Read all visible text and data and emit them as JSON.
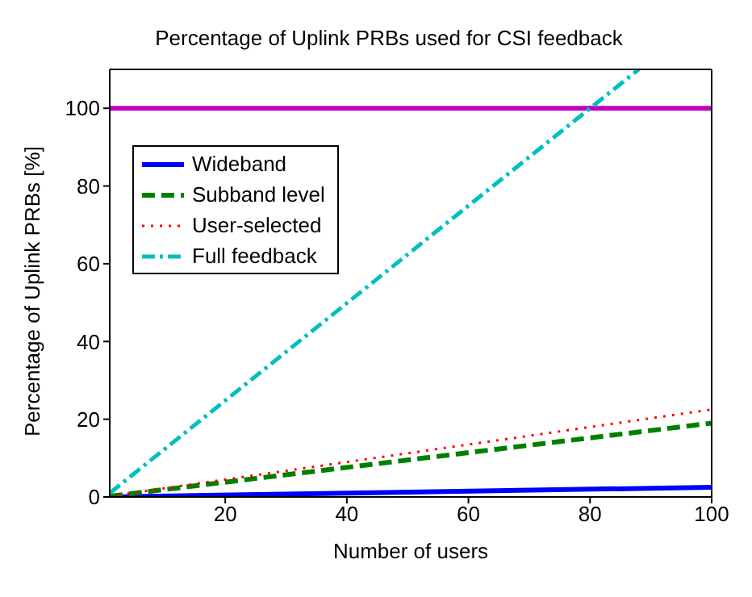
{
  "chart_data": {
    "type": "line",
    "title": "Percentage of Uplink PRBs used for CSI feedback",
    "xlabel": "Number of users",
    "ylabel": "Percentage of Uplink PRBs [%]",
    "xlim": [
      1,
      100
    ],
    "xticks": [
      20,
      40,
      60,
      80,
      100
    ],
    "ylim": [
      0,
      110
    ],
    "yticks": [
      0,
      20,
      40,
      60,
      80,
      100
    ],
    "legend": "top left",
    "marker": "none",
    "series": [
      {
        "name": "Wideband",
        "color": "#0000ff",
        "line_style": "solid",
        "x": [
          1,
          100
        ],
        "values": [
          0,
          2.5
        ]
      },
      {
        "name": "Subband level",
        "color": "#008000",
        "line_style": "dashed",
        "x": [
          1,
          100
        ],
        "values": [
          0.2,
          19
        ]
      },
      {
        "name": "User-selected",
        "color": "#ff0000",
        "line_style": "dotted",
        "x": [
          1,
          100
        ],
        "values": [
          0.2,
          22.5
        ]
      },
      {
        "name": "Full feedback",
        "color": "#00bfbf",
        "line_style": "dashdot",
        "x": [
          1,
          88
        ],
        "values": [
          1,
          110
        ]
      }
    ],
    "ref_lines": [
      {
        "axis": "y",
        "value": 100,
        "color": "#bf00bf"
      }
    ]
  }
}
